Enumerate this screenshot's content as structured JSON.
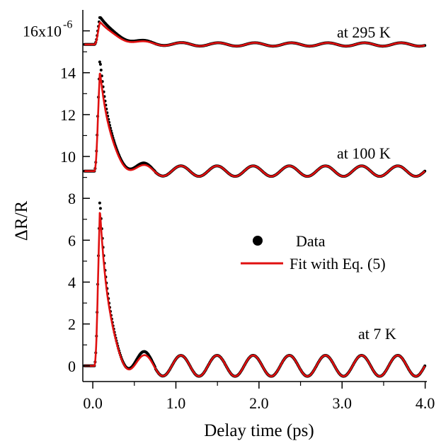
{
  "chart_data": {
    "type": "line",
    "xlabel": "Delay time (ps)",
    "ylabel": "ΔR/R",
    "xlim": [
      -0.12,
      4.02
    ],
    "ylim": [
      -0.75,
      17.0
    ],
    "x_ticks": [
      {
        "value": 0.0,
        "label": "0.0"
      },
      {
        "value": 1.0,
        "label": "1.0"
      },
      {
        "value": 2.0,
        "label": "2.0"
      },
      {
        "value": 3.0,
        "label": "3.0"
      },
      {
        "value": 4.0,
        "label": "4.0"
      }
    ],
    "y_ticks": [
      {
        "value": 0,
        "label": "0"
      },
      {
        "value": 2,
        "label": "2"
      },
      {
        "value": 4,
        "label": "4"
      },
      {
        "value": 6,
        "label": "6"
      },
      {
        "value": 8,
        "label": "8"
      },
      {
        "value": 10,
        "label": "10"
      },
      {
        "value": 12,
        "label": "12"
      },
      {
        "value": 14,
        "label": "14"
      },
      {
        "value": 16,
        "label": "16x10",
        "exponent": "-6"
      }
    ],
    "legend": {
      "placement": "right",
      "entries": [
        {
          "label": "Data",
          "marker": "dot",
          "color": "#000000"
        },
        {
          "label": "Fit with Eq. (5)",
          "marker": "line",
          "color": "#e01010"
        }
      ]
    },
    "annotations": [
      "at 295 K",
      "at 100 K",
      "at 7 K"
    ],
    "grid": false,
    "series": [
      {
        "name": "at 7 K",
        "baseline": 0,
        "fit_peak": 7.7,
        "data_peak": 8.2,
        "period_ps": 0.435,
        "oscillation_amplitude": 0.5,
        "decay_tau_ps": 0.1
      },
      {
        "name": "at 100 K",
        "baseline": 9.3,
        "fit_peak": 14.2,
        "data_peak": 14.8,
        "period_ps": 0.435,
        "oscillation_amplitude": 0.25,
        "decay_tau_ps": 0.12
      },
      {
        "name": "at 295 K",
        "baseline": 15.35,
        "fit_peak": 16.45,
        "data_peak": 16.7,
        "period_ps": 0.44,
        "oscillation_amplitude": 0.08,
        "decay_tau_ps": 0.2
      }
    ]
  },
  "colors": {
    "fit": "#e01010",
    "data": "#000000",
    "axis": "#000000"
  }
}
